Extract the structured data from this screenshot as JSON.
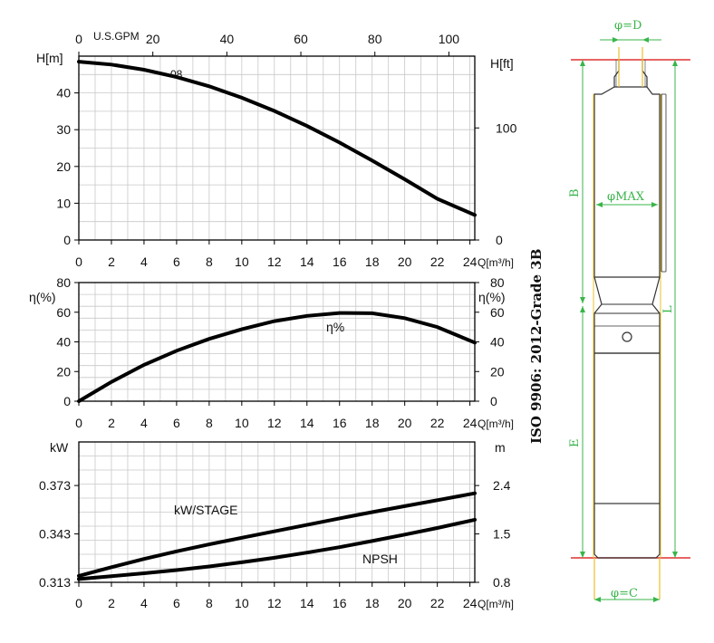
{
  "chart_data": [
    {
      "type": "line",
      "x_name": "Q[m³/h]",
      "top_axis_name": "U.S.GPM",
      "top_axis_ticks": [
        0,
        20,
        40,
        60,
        80,
        100
      ],
      "ylabel_left": "H[m]",
      "ylabel_right": "H[ft]",
      "xlim": [
        0,
        24.3
      ],
      "ylim": [
        0,
        50
      ],
      "x_ticks": [
        0,
        2,
        4,
        6,
        8,
        10,
        12,
        14,
        16,
        18,
        20,
        22,
        24
      ],
      "y_ticks": [
        0,
        10,
        20,
        30,
        40
      ],
      "right_ticks": [
        0,
        100
      ],
      "series": [
        {
          "name": "08",
          "x": [
            0,
            2,
            4,
            6,
            8,
            10,
            12,
            14,
            16,
            18,
            20,
            22,
            24.3
          ],
          "y": [
            48.5,
            47.7,
            46.3,
            44.3,
            41.8,
            38.7,
            35.1,
            31.0,
            26.5,
            21.6,
            16.5,
            11.2,
            6.8
          ]
        }
      ]
    },
    {
      "type": "line",
      "x_name": "Q[m³/h]",
      "ylabel_left": "η(%)",
      "ylabel_right": "η(%)",
      "xlim": [
        0,
        24.3
      ],
      "ylim": [
        0,
        80
      ],
      "x_ticks": [
        0,
        2,
        4,
        6,
        8,
        10,
        12,
        14,
        16,
        18,
        20,
        22,
        24
      ],
      "y_ticks": [
        0,
        20,
        40,
        60,
        80
      ],
      "right_ticks": [
        0,
        20,
        40,
        60,
        80
      ],
      "series": [
        {
          "name": "η%",
          "x": [
            0,
            2,
            4,
            6,
            8,
            10,
            12,
            14,
            16,
            18,
            20,
            22,
            24.3
          ],
          "y": [
            0,
            13,
            24.5,
            34,
            42,
            48.5,
            54,
            57.5,
            59.5,
            59.3,
            56,
            50,
            39.5
          ]
        }
      ]
    },
    {
      "type": "line",
      "x_name": "Q[m³/h]",
      "ylabel_left": "kW",
      "ylabel_right": "m",
      "xlim": [
        0,
        24.3
      ],
      "ylim": [
        0.313,
        0.4
      ],
      "x_ticks": [
        0,
        2,
        4,
        6,
        8,
        10,
        12,
        14,
        16,
        18,
        20,
        22,
        24
      ],
      "y_ticks": [
        0.313,
        0.343,
        0.373
      ],
      "right_ticks": [
        "0.8",
        "1.5",
        "2.4"
      ],
      "series": [
        {
          "name": "kW/STAGE",
          "x": [
            0,
            2,
            4,
            6,
            8,
            10,
            12,
            14,
            16,
            18,
            20,
            22,
            24.3
          ],
          "y": [
            0.317,
            0.3224,
            0.3275,
            0.3322,
            0.3365,
            0.3406,
            0.3446,
            0.3486,
            0.3526,
            0.3565,
            0.3602,
            0.3639,
            0.3682
          ]
        },
        {
          "name": "NPSH",
          "x": [
            0,
            2,
            4,
            6,
            8,
            10,
            12,
            14,
            16,
            18,
            20,
            22,
            24.3
          ],
          "y": [
            0.315,
            0.3168,
            0.3186,
            0.3206,
            0.3228,
            0.3254,
            0.3282,
            0.3314,
            0.3348,
            0.3386,
            0.3426,
            0.3467,
            0.3518
          ]
        }
      ]
    }
  ],
  "standard_text": "ISO 9906: 2012-Grade 3B",
  "dimension_labels": {
    "d": "φ=D",
    "max": "φMAX",
    "c": "φ=C",
    "b": "B",
    "e": "E",
    "l": "L"
  },
  "colors": {
    "dimension": "#39b54a",
    "reference": "#e03030",
    "grid": "#c8c8c8"
  }
}
